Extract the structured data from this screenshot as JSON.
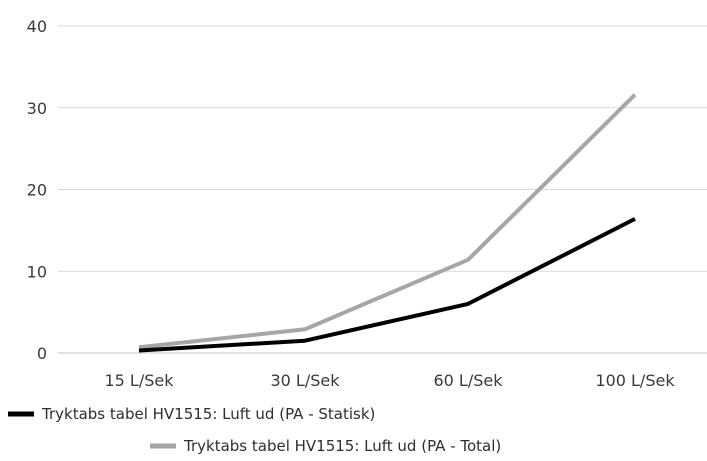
{
  "chart_data": {
    "type": "line",
    "categories": [
      "15 L/Sek",
      "30 L/Sek",
      "60 L/Sek",
      "100 L/Sek"
    ],
    "ylim": [
      0,
      40
    ],
    "yticks": [
      "0",
      "10",
      "20",
      "30",
      "40"
    ],
    "grid": true,
    "legend_position": "bottom",
    "series": [
      {
        "name": "Tryktabs tabel HV1515: Luft ud (PA - Statisk)",
        "values": [
          0.3,
          1.5,
          6.0,
          16.4
        ],
        "color": "#000000"
      },
      {
        "name": "Tryktabs tabel HV1515: Luft ud (PA - Total)",
        "values": [
          0.7,
          2.9,
          11.4,
          31.6
        ],
        "color": "#a6a6a6"
      }
    ]
  }
}
